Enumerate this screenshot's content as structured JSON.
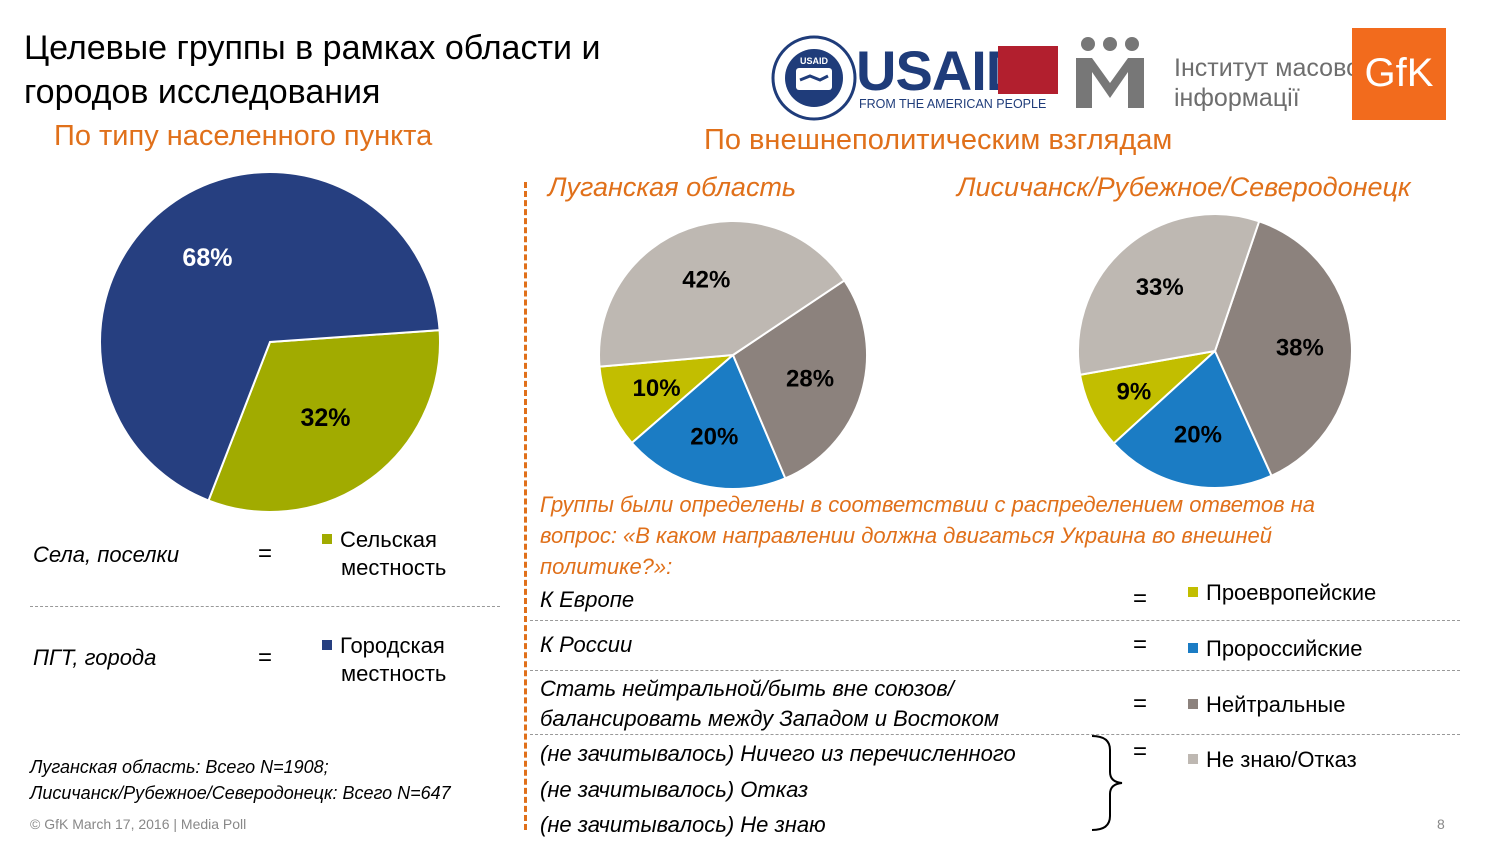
{
  "title_lines": [
    "Целевые группы в рамках области и",
    "городов исследования"
  ],
  "subtitle_left": "По типу населенного пункта",
  "subtitle_right": "По внешнеполитическим взглядам",
  "logos": {
    "usaid_seal_text": "UNITED STATES AGENCY · INTERNATIONAL DEVELOPMENT",
    "usaid_seal_inner": "USAID",
    "usaid_word": "USAID",
    "usaid_tagline": "FROM THE AMERICAN PEOPLE",
    "imi_line1": "Інститут масової",
    "imi_line2": "інформації",
    "gfk": "GfK"
  },
  "colors": {
    "urban": "#263F80",
    "rural": "#A1AB00",
    "pro_eu": "#C2BE00",
    "pro_ru": "#1B7CC4",
    "neutral": "#8C827D",
    "dk": "#BEB8B2",
    "accent": "#E0701A"
  },
  "chart_data": [
    {
      "type": "pie",
      "title": "По типу населенного пункта",
      "categories": [
        "Сельская местность",
        "Городская местность"
      ],
      "values": [
        32,
        68
      ],
      "labels": [
        "32%",
        "68%"
      ]
    },
    {
      "type": "pie",
      "title": "Луганская область",
      "categories": [
        "Проевропейские",
        "Пророссийские",
        "Нейтральные",
        "Не знаю/Отказ"
      ],
      "values": [
        10,
        20,
        28,
        42
      ],
      "labels": [
        "10%",
        "20%",
        "28%",
        "42%"
      ]
    },
    {
      "type": "pie",
      "title": "Лисичанск/Рубежное/Северодонецк",
      "categories": [
        "Проевропейские",
        "Пророссийские",
        "Нейтральные",
        "Не знаю/Отказ"
      ],
      "values": [
        9,
        20,
        38,
        33
      ],
      "labels": [
        "9%",
        "20%",
        "38%",
        "33%"
      ]
    }
  ],
  "left_mapping": [
    {
      "source": "Села, поселки",
      "eq": "=",
      "legend_lines": [
        "Сельская",
        "местность"
      ]
    },
    {
      "source": "ПГТ, города",
      "eq": "=",
      "legend_lines": [
        "Городская",
        "местность"
      ]
    }
  ],
  "note_lines": [
    "Группы были определены в соответствии  с  распределением ответов  на",
    "вопрос: «В каком направлении должна двигаться Украина во внешней",
    "политике?»:"
  ],
  "right_mapping": [
    {
      "lines": [
        "К Европе"
      ],
      "eq": "=",
      "legend": "Проевропейские"
    },
    {
      "lines": [
        "К России"
      ],
      "eq": "=",
      "legend": "Пророссийские"
    },
    {
      "lines": [
        "Стать нейтральной/быть вне союзов/",
        "балансировать между Западом и Востоком"
      ],
      "eq": "=",
      "legend": "Нейтральные"
    },
    {
      "lines": [
        "(не зачитывалось) Ничего из перечисленного",
        "(не зачитывалось) Отказ",
        "(не зачитывалось) Не знаю"
      ],
      "eq": "=",
      "legend": "Не знаю/Отказ"
    }
  ],
  "sample_lines": [
    "Луганская область: Всего N=1908;",
    "Лисичанск/Рубежное/Северодонецк: Всего N=647"
  ],
  "footer": "© GfK March 17, 2016 | Media Poll",
  "page_number": "8"
}
